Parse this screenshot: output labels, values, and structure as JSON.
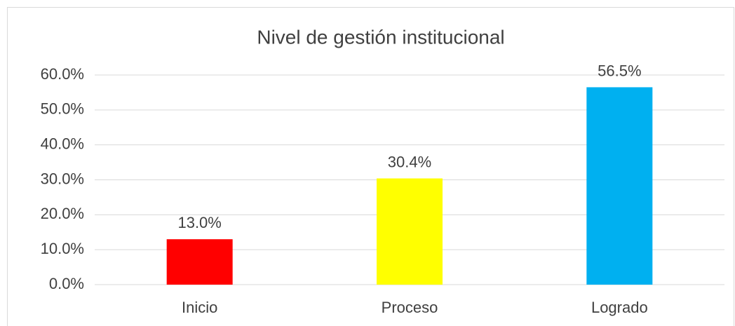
{
  "chart_data": {
    "type": "bar",
    "title": "Nivel de gestión institucional",
    "categories": [
      "Inicio",
      "Proceso",
      "Logrado"
    ],
    "values": [
      13.0,
      30.4,
      56.5
    ],
    "value_labels": [
      "13.0%",
      "30.4%",
      "56.5%"
    ],
    "colors": [
      "#ff0000",
      "#ffff00",
      "#00b0f0"
    ],
    "ylim": [
      0,
      60
    ],
    "yticks": [
      {
        "value": 0,
        "label": "0.0%"
      },
      {
        "value": 10,
        "label": "10.0%"
      },
      {
        "value": 20,
        "label": "20.0%"
      },
      {
        "value": 30,
        "label": "30.0%"
      },
      {
        "value": 40,
        "label": "40.0%"
      },
      {
        "value": 50,
        "label": "50.0%"
      },
      {
        "value": 60,
        "label": "60.0%"
      }
    ],
    "grid": true
  }
}
